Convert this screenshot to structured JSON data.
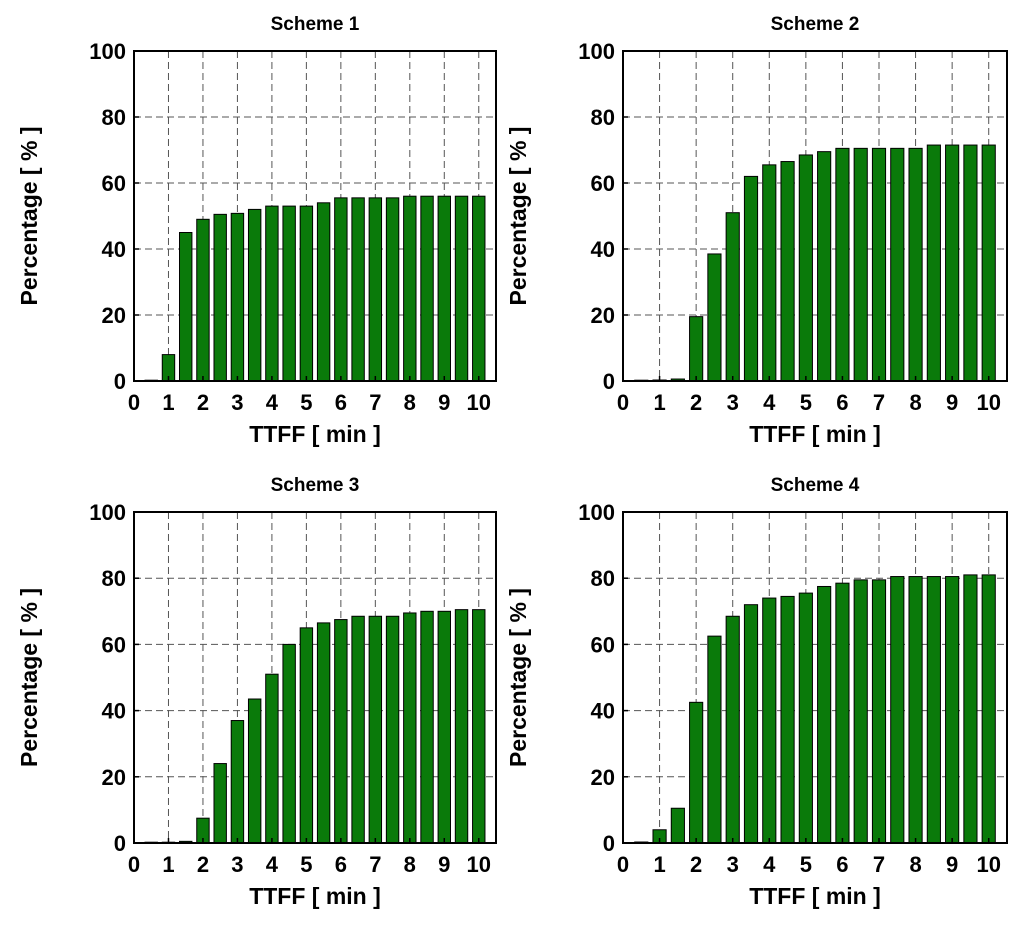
{
  "chart_data": [
    {
      "type": "bar",
      "title": "Scheme 1",
      "xlabel": "TTFF [ min ]",
      "ylabel": "Percentage [ % ]",
      "xlim": [
        0,
        10.5
      ],
      "ylim": [
        0,
        100
      ],
      "xticks": [
        0,
        1,
        2,
        3,
        4,
        5,
        6,
        7,
        8,
        9,
        10
      ],
      "yticks": [
        0,
        20,
        40,
        60,
        80,
        100
      ],
      "grid": true,
      "bar_color": "#0a7a0a",
      "x": [
        0.5,
        1,
        1.5,
        2,
        2.5,
        3,
        3.5,
        4,
        4.5,
        5,
        5.5,
        6,
        6.5,
        7,
        7.5,
        8,
        8.5,
        9,
        9.5,
        10
      ],
      "values": [
        0,
        8,
        45,
        49,
        50.5,
        50.8,
        52,
        53,
        53,
        53,
        54,
        55.5,
        55.5,
        55.5,
        55.5,
        56,
        56,
        56,
        56,
        56
      ]
    },
    {
      "type": "bar",
      "title": "Scheme 2",
      "xlabel": "TTFF [ min ]",
      "ylabel": "Percentage [ % ]",
      "xlim": [
        0,
        10.5
      ],
      "ylim": [
        0,
        100
      ],
      "xticks": [
        0,
        1,
        2,
        3,
        4,
        5,
        6,
        7,
        8,
        9,
        10
      ],
      "yticks": [
        0,
        20,
        40,
        60,
        80,
        100
      ],
      "grid": true,
      "bar_color": "#0a7a0a",
      "x": [
        0.5,
        1,
        1.5,
        2,
        2.5,
        3,
        3.5,
        4,
        4.5,
        5,
        5.5,
        6,
        6.5,
        7,
        7.5,
        8,
        8.5,
        9,
        9.5,
        10
      ],
      "values": [
        0,
        0.3,
        0.6,
        19.5,
        38.5,
        51,
        62,
        65.5,
        66.5,
        68.5,
        69.5,
        70.5,
        70.5,
        70.5,
        70.5,
        70.5,
        71.5,
        71.5,
        71.5,
        71.5
      ]
    },
    {
      "type": "bar",
      "title": "Scheme 3",
      "xlabel": "TTFF [ min ]",
      "ylabel": "Percentage [ % ]",
      "xlim": [
        0,
        10.5
      ],
      "ylim": [
        0,
        100
      ],
      "xticks": [
        0,
        1,
        2,
        3,
        4,
        5,
        6,
        7,
        8,
        9,
        10
      ],
      "yticks": [
        0,
        20,
        40,
        60,
        80,
        100
      ],
      "grid": true,
      "bar_color": "#0a7a0a",
      "x": [
        0.5,
        1,
        1.5,
        2,
        2.5,
        3,
        3.5,
        4,
        4.5,
        5,
        5.5,
        6,
        6.5,
        7,
        7.5,
        8,
        8.5,
        9,
        9.5,
        10
      ],
      "values": [
        0,
        0,
        0.5,
        7.5,
        24,
        37,
        43.5,
        51,
        60,
        65,
        66.5,
        67.5,
        68.5,
        68.5,
        68.5,
        69.5,
        70,
        70,
        70.5,
        70.5
      ]
    },
    {
      "type": "bar",
      "title": "Scheme 4",
      "xlabel": "TTFF [ min ]",
      "ylabel": "Percentage [ % ]",
      "xlim": [
        0,
        10.5
      ],
      "ylim": [
        0,
        100
      ],
      "xticks": [
        0,
        1,
        2,
        3,
        4,
        5,
        6,
        7,
        8,
        9,
        10
      ],
      "yticks": [
        0,
        20,
        40,
        60,
        80,
        100
      ],
      "grid": true,
      "bar_color": "#0a7a0a",
      "x": [
        0.5,
        1,
        1.5,
        2,
        2.5,
        3,
        3.5,
        4,
        4.5,
        5,
        5.5,
        6,
        6.5,
        7,
        7.5,
        8,
        8.5,
        9,
        9.5,
        10
      ],
      "values": [
        0.3,
        4,
        10.5,
        42.5,
        62.5,
        68.5,
        72,
        74,
        74.5,
        75.5,
        77.5,
        78.5,
        79.5,
        79.5,
        80.5,
        80.5,
        80.5,
        80.5,
        81,
        81
      ]
    }
  ]
}
